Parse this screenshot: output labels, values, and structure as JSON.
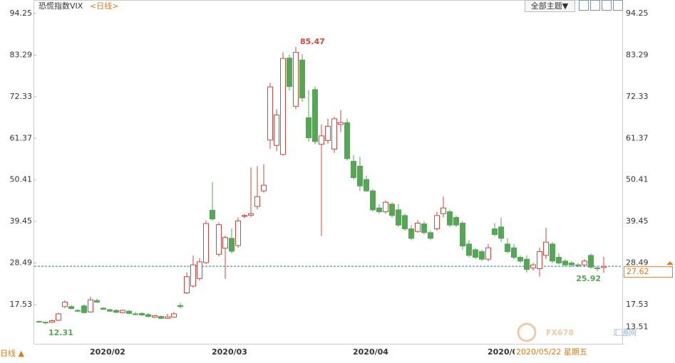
{
  "chart_data": {
    "type": "candlestick",
    "title": "恐慌指数VIX",
    "period": "<日线>",
    "categories": [
      null,
      null,
      null,
      null,
      null,
      null,
      null,
      null,
      null,
      "2020/02",
      null,
      null,
      null,
      null,
      null,
      null,
      null,
      null,
      null,
      null,
      null,
      null,
      null,
      null,
      null,
      null,
      null,
      null,
      "2020/03",
      null,
      null,
      null,
      null,
      null,
      null,
      null,
      null,
      null,
      null,
      null,
      null,
      null,
      null,
      null,
      null,
      null,
      null,
      null,
      null,
      null,
      "2020/04",
      null,
      null,
      null,
      null,
      null,
      null,
      null,
      null,
      null,
      null,
      null,
      null,
      null,
      null,
      null,
      null,
      null,
      null,
      null,
      null,
      "2020/05",
      null,
      null,
      null,
      null,
      null,
      null,
      null,
      null,
      null,
      null,
      null,
      null,
      null,
      null,
      null,
      null,
      null
    ],
    "open": [
      13.1,
      12.9,
      12.9,
      13.4,
      17.0,
      17.0,
      16.0,
      17.2,
      15.6,
      18.6,
      16.6,
      16.2,
      16.0,
      15.4,
      15.8,
      15.1,
      15.2,
      14.9,
      14.2,
      14.4,
      13.9,
      14.2,
      17.3,
      20.6,
      22.4,
      24.4,
      28.6,
      42.4,
      30.8,
      32.4,
      35.0,
      33.1,
      40.8,
      41.1,
      43.4,
      47.5,
      60.9,
      59.5,
      57.1,
      82.5,
      69.8,
      82.0,
      66.8,
      74.2,
      59.8,
      60.8,
      58.5,
      65.0,
      65.5,
      55.3,
      54.0,
      50.5,
      47.5,
      43.0,
      42.0,
      44.0,
      42.5,
      41.0,
      37.5,
      36.8,
      38.8,
      36.5,
      37.5,
      41.5,
      42.0,
      40.5,
      39.0,
      33.5,
      32.0,
      31.5,
      29.5,
      37.5,
      38.0,
      33.5,
      32.5,
      30.0,
      29.5,
      27.2,
      27.0,
      30.5,
      33.5,
      30.0,
      29.0,
      28.5,
      28.0,
      28.0,
      30.5,
      27.2,
      27.3
    ],
    "high": [
      13.3,
      13.0,
      13.6,
      15.4,
      18.6,
      17.4,
      16.4,
      17.6,
      19.6,
      19.1,
      16.9,
      16.5,
      16.3,
      16.2,
      16.1,
      15.6,
      15.5,
      15.3,
      14.8,
      14.7,
      15.1,
      15.6,
      18.0,
      26.0,
      30.5,
      29.8,
      39.7,
      49.8,
      39.2,
      35.7,
      37.6,
      40.5,
      41.5,
      53.7,
      54.0,
      54.5,
      76.0,
      69.0,
      84.0,
      83.4,
      85.47,
      83.5,
      74.0,
      75.0,
      65.0,
      66.5,
      67.0,
      68.8,
      66.5,
      57.0,
      56.5,
      51.5,
      48.0,
      44.0,
      45.0,
      44.5,
      44.0,
      41.5,
      38.5,
      39.8,
      39.5,
      37.0,
      42.0,
      46.0,
      42.5,
      41.0,
      39.5,
      34.5,
      32.5,
      32.0,
      33.5,
      39.0,
      40.5,
      35.0,
      33.5,
      30.5,
      30.5,
      28.5,
      32.5,
      37.8,
      34.0,
      31.0,
      29.5,
      29.0,
      28.5,
      29.5,
      31.0,
      27.6,
      30.1
    ],
    "low": [
      12.9,
      12.31,
      12.7,
      13.2,
      16.6,
      16.3,
      15.5,
      15.2,
      15.4,
      18.0,
      16.1,
      15.6,
      15.3,
      15.2,
      15.0,
      14.7,
      14.6,
      14.2,
      14.0,
      13.7,
      13.8,
      14.0,
      16.5,
      20.3,
      22.0,
      23.9,
      28.2,
      39.6,
      30.2,
      24.3,
      31.0,
      32.5,
      40.3,
      40.6,
      42.6,
      47.0,
      58.6,
      58.0,
      56.8,
      74.0,
      69.0,
      71.0,
      60.5,
      59.8,
      35.6,
      59.9,
      57.5,
      63.0,
      55.5,
      50.5,
      47.5,
      47.2,
      42.0,
      41.5,
      41.5,
      40.5,
      38.0,
      37.0,
      34.5,
      36.5,
      36.0,
      34.5,
      37.0,
      40.5,
      38.0,
      38.0,
      32.0,
      30.0,
      29.5,
      29.0,
      29.0,
      35.5,
      34.0,
      31.0,
      29.5,
      28.5,
      26.0,
      26.5,
      24.9,
      29.5,
      28.5,
      28.0,
      27.5,
      27.5,
      27.3,
      27.5,
      27.0,
      26.3,
      25.92
    ],
    "close": [
      13.0,
      12.8,
      13.3,
      15.1,
      18.2,
      16.5,
      15.8,
      15.4,
      18.8,
      18.2,
      16.3,
      15.8,
      15.5,
      16.0,
      15.2,
      14.9,
      14.8,
      14.4,
      14.6,
      13.9,
      14.3,
      15.1,
      17.0,
      24.9,
      28.0,
      28.8,
      38.9,
      40.1,
      38.6,
      35.2,
      31.6,
      39.6,
      41.0,
      41.5,
      46.0,
      49.0,
      74.9,
      67.5,
      82.4,
      75.0,
      84.0,
      72.0,
      61.5,
      60.5,
      62.0,
      64.5,
      66.5,
      65.5,
      56.0,
      51.0,
      48.8,
      47.5,
      42.5,
      42.0,
      44.5,
      41.0,
      38.5,
      37.5,
      35.0,
      39.0,
      36.5,
      35.0,
      41.0,
      43.0,
      38.5,
      38.5,
      33.0,
      30.5,
      30.0,
      29.5,
      32.5,
      36.0,
      35.0,
      31.5,
      30.0,
      29.0,
      26.8,
      28.0,
      31.5,
      34.0,
      29.0,
      28.5,
      28.0,
      28.0,
      27.8,
      29.0,
      27.4,
      27.0,
      27.62
    ],
    "ylim": [
      13.51,
      94.25
    ],
    "yticks": [
      17.53,
      28.49,
      39.45,
      50.41,
      61.37,
      72.33,
      83.29,
      94.25
    ],
    "up_color": "#d5453b",
    "down_color": "#55a655"
  },
  "ui": {
    "theme_button": "全部主题▼",
    "bottom_period": "日线 ▲",
    "cursor_date": "2020/05/22 星期五",
    "watermark_brand": "FX678",
    "watermark_cn": "汇通网"
  }
}
